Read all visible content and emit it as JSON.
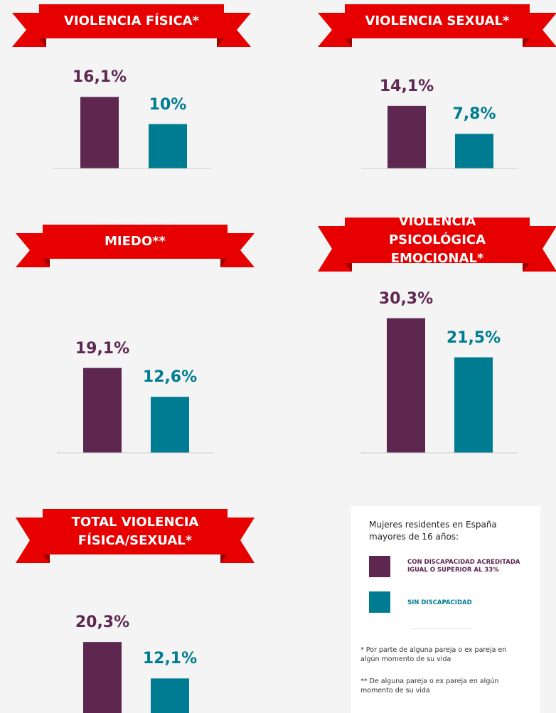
{
  "chart_data": [
    {
      "type": "bar",
      "title": "VIOLENCIA FÍSICA*",
      "categories": [
        null,
        null
      ],
      "values": [
        16.1,
        10
      ],
      "value_labels": [
        "16,1%",
        "10%"
      ],
      "colors": [
        "#5e2750",
        "#007c92"
      ]
    },
    {
      "type": "bar",
      "title": "VIOLENCIA SEXUAL*",
      "categories": [
        null,
        null
      ],
      "values": [
        14.1,
        7.8
      ],
      "value_labels": [
        "14,1%",
        "7,8%"
      ],
      "colors": [
        "#5e2750",
        "#007c92"
      ]
    },
    {
      "type": "bar",
      "title": "MIEDO**",
      "categories": [
        null,
        null
      ],
      "values": [
        19.1,
        12.6
      ],
      "value_labels": [
        "19,1%",
        "12,6%"
      ],
      "colors": [
        "#5e2750",
        "#007c92"
      ]
    },
    {
      "type": "bar",
      "title": "VIOLENCIA PSICOLÓGICA EMOCIONAL*",
      "categories": [
        null,
        null
      ],
      "values": [
        30.3,
        21.5
      ],
      "value_labels": [
        "30,3%",
        "21,5%"
      ],
      "colors": [
        "#5e2750",
        "#007c92"
      ]
    },
    {
      "type": "bar",
      "title": "TOTAL VIOLENCIA FÍSICA/SEXUAL*",
      "categories": [
        null,
        null
      ],
      "values": [
        20.3,
        12.1
      ],
      "value_labels": [
        "20,3%",
        "12,1%"
      ],
      "colors": [
        "#5e2750",
        "#007c92"
      ]
    }
  ],
  "legend": {
    "title": "Mujeres residentes en España mayores de 16 años:",
    "items": [
      {
        "label": "CON DISCAPACIDAD ACREDITADA IGUAL O SUPERIOR AL 33%",
        "color": "#5e2750"
      },
      {
        "label": "SIN DISCAPACIDAD",
        "color": "#007c92"
      }
    ],
    "notes": [
      "* Por parte de alguna pareja o ex pareja en algún momento de su vida",
      "** De alguna pareja o ex pareja en algún momento de su vida"
    ]
  }
}
